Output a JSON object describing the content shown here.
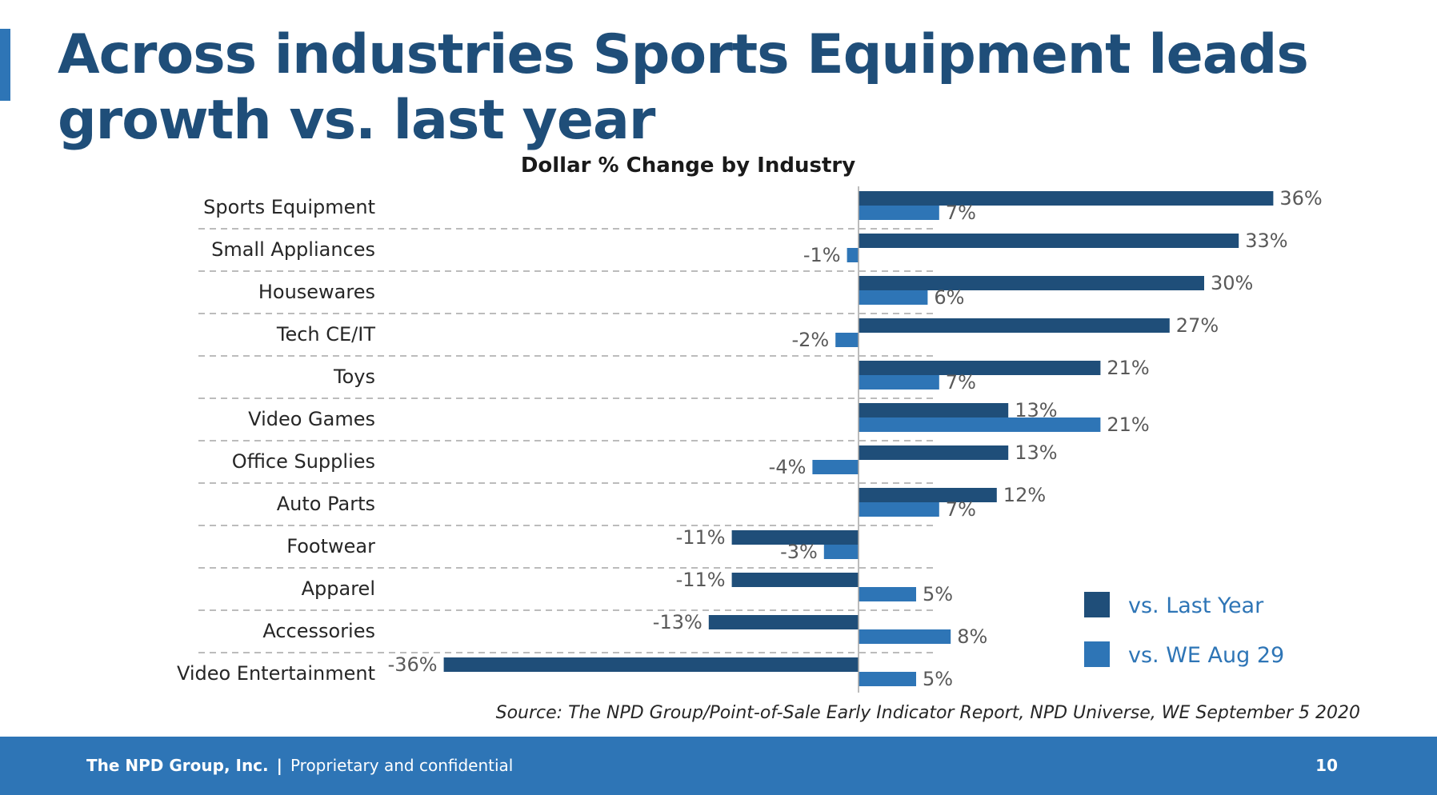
{
  "slide": {
    "title": "Across industries Sports Equipment leads growth vs. last year"
  },
  "chart_data": {
    "type": "bar",
    "orientation": "horizontal",
    "title": "Dollar % Change by Industry",
    "categories": [
      "Sports Equipment",
      "Small Appliances",
      "Housewares",
      "Tech CE/IT",
      "Toys",
      "Video Games",
      "Office Supplies",
      "Auto Parts",
      "Footwear",
      "Apparel",
      "Accessories",
      "Video Entertainment"
    ],
    "series": [
      {
        "name": "vs. Last Year",
        "color": "#1f4e79",
        "values": [
          36,
          33,
          30,
          27,
          21,
          13,
          13,
          12,
          -11,
          -11,
          -13,
          -36
        ],
        "labels": [
          "36%",
          "33%",
          "30%",
          "27%",
          "21%",
          "13%",
          "13%",
          "12%",
          "-11%",
          "-11%",
          "-13%",
          "-36%"
        ]
      },
      {
        "name": "vs. WE Aug 29",
        "color": "#2e75b6",
        "values": [
          7,
          -1,
          6,
          -2,
          7,
          21,
          -4,
          7,
          -3,
          5,
          8,
          5
        ],
        "labels": [
          "7%",
          "-1%",
          "6%",
          "-2%",
          "7%",
          "21%",
          "-4%",
          "7%",
          "-3%",
          "5%",
          "8%",
          "5%"
        ]
      }
    ],
    "grid": "dashed horizontal separators",
    "legend_position": "bottom-right",
    "source": "Source: The NPD Group/Point-of-Sale Early Indicator Report, NPD Universe, WE September 5 2020"
  },
  "footer": {
    "company": "The NPD Group, Inc.",
    "separator": "|",
    "note": "Proprietary and confidential",
    "page_number": "10"
  }
}
